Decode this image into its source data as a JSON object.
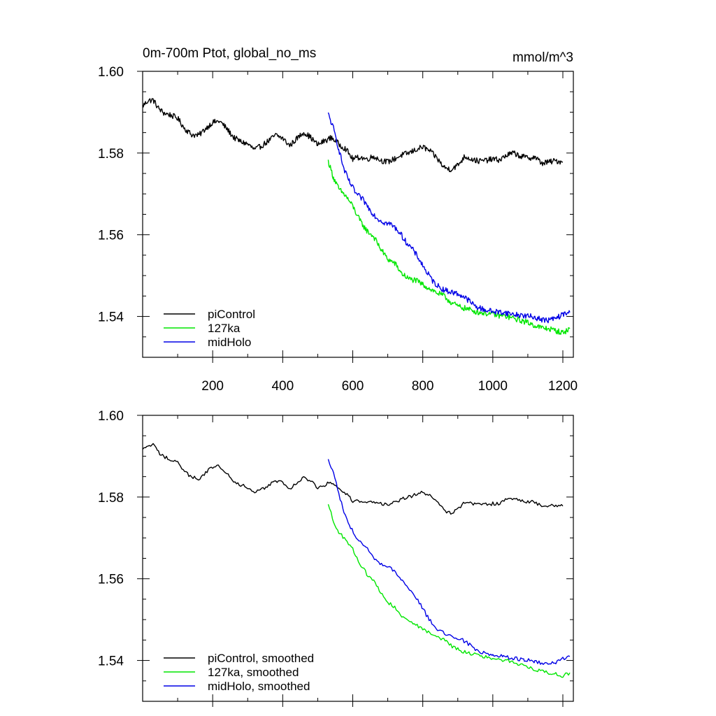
{
  "colors": {
    "background": "#ffffff",
    "axis": "#000000",
    "piControl": "#000000",
    "ka127": "#00e600",
    "midHolo": "#0000e6"
  },
  "chart_data": [
    {
      "id": "top",
      "type": "line",
      "title": "0m-700m Ptot, global_no_ms",
      "units": "mmol/m^3",
      "xlabel": "",
      "ylabel": "",
      "xlim": [
        0,
        1230
      ],
      "ylim": [
        1.53,
        1.6
      ],
      "xticks": [
        200,
        400,
        600,
        800,
        1000,
        1200
      ],
      "xtick_labels": [
        "200",
        "400",
        "600",
        "800",
        "1000",
        "1200"
      ],
      "show_x_tick_labels": true,
      "yticks": [
        1.54,
        1.56,
        1.58,
        1.6
      ],
      "ytick_labels": [
        "1.54",
        "1.56",
        "1.58",
        "1.60"
      ],
      "legend_position": "bottom-left",
      "series": [
        {
          "name": "piControl",
          "color": "#000000",
          "x": [
            0,
            15,
            30,
            45,
            60,
            80,
            100,
            120,
            140,
            160,
            180,
            200,
            220,
            240,
            260,
            280,
            300,
            320,
            340,
            360,
            380,
            400,
            420,
            440,
            460,
            480,
            500,
            520,
            540,
            560,
            580,
            600,
            620,
            640,
            660,
            680,
            700,
            720,
            740,
            760,
            780,
            800,
            820,
            840,
            860,
            880,
            900,
            920,
            940,
            960,
            980,
            1000,
            1020,
            1040,
            1060,
            1080,
            1100,
            1120,
            1140,
            1160,
            1180,
            1200
          ],
          "y": [
            1.5915,
            1.5928,
            1.593,
            1.591,
            1.5898,
            1.5893,
            1.5885,
            1.586,
            1.5845,
            1.5843,
            1.586,
            1.5875,
            1.5878,
            1.586,
            1.5838,
            1.5828,
            1.5822,
            1.5808,
            1.5818,
            1.583,
            1.5844,
            1.5836,
            1.5818,
            1.5835,
            1.5851,
            1.5838,
            1.582,
            1.583,
            1.5838,
            1.5822,
            1.581,
            1.5785,
            1.579,
            1.5785,
            1.5792,
            1.5782,
            1.5778,
            1.5786,
            1.5795,
            1.58,
            1.5808,
            1.5815,
            1.5805,
            1.5788,
            1.5765,
            1.576,
            1.577,
            1.5792,
            1.5785,
            1.578,
            1.5782,
            1.5785,
            1.5783,
            1.5795,
            1.58,
            1.5792,
            1.5788,
            1.579,
            1.5775,
            1.5778,
            1.5781,
            1.5778
          ]
        },
        {
          "name": "127ka",
          "color": "#00e600",
          "x": [
            530,
            545,
            560,
            580,
            600,
            620,
            640,
            660,
            680,
            700,
            720,
            740,
            760,
            780,
            800,
            820,
            840,
            860,
            880,
            900,
            920,
            940,
            960,
            980,
            1000,
            1020,
            1040,
            1060,
            1080,
            1100,
            1120,
            1140,
            1160,
            1180,
            1200,
            1220
          ],
          "y": [
            1.578,
            1.574,
            1.5712,
            1.5695,
            1.567,
            1.5635,
            1.561,
            1.5595,
            1.5565,
            1.554,
            1.553,
            1.5505,
            1.5492,
            1.5488,
            1.5478,
            1.5468,
            1.5458,
            1.545,
            1.5435,
            1.5425,
            1.542,
            1.5415,
            1.541,
            1.5408,
            1.5405,
            1.5402,
            1.54,
            1.5395,
            1.539,
            1.5385,
            1.5378,
            1.5372,
            1.537,
            1.5365,
            1.536,
            1.537
          ]
        },
        {
          "name": "midHolo",
          "color": "#0000e6",
          "x": [
            530,
            545,
            560,
            575,
            590,
            610,
            630,
            650,
            670,
            690,
            710,
            730,
            750,
            770,
            790,
            810,
            830,
            850,
            870,
            890,
            910,
            930,
            950,
            970,
            1000,
            1030,
            1060,
            1090,
            1120,
            1150,
            1180,
            1200,
            1220
          ],
          "y": [
            1.5895,
            1.586,
            1.581,
            1.576,
            1.573,
            1.57,
            1.5685,
            1.566,
            1.564,
            1.563,
            1.5625,
            1.561,
            1.5585,
            1.5565,
            1.554,
            1.551,
            1.5485,
            1.547,
            1.5462,
            1.5458,
            1.5452,
            1.544,
            1.5425,
            1.5418,
            1.5412,
            1.541,
            1.5405,
            1.5402,
            1.5398,
            1.539,
            1.5395,
            1.5405,
            1.541
          ]
        }
      ]
    },
    {
      "id": "bottom",
      "type": "line",
      "title": "",
      "units": "",
      "xlabel": "",
      "ylabel": "",
      "xlim": [
        0,
        1230
      ],
      "ylim": [
        1.53,
        1.6
      ],
      "xticks": [
        200,
        400,
        600,
        800,
        1000,
        1200
      ],
      "xtick_labels": [],
      "show_x_tick_labels": false,
      "yticks": [
        1.54,
        1.56,
        1.58,
        1.6
      ],
      "ytick_labels": [
        "1.54",
        "1.56",
        "1.58",
        "1.60"
      ],
      "legend_position": "bottom-left",
      "series": [
        {
          "name": "piControl, smoothed",
          "color": "#000000",
          "x": [
            0,
            15,
            30,
            45,
            60,
            80,
            100,
            120,
            140,
            160,
            180,
            200,
            220,
            240,
            260,
            280,
            300,
            320,
            340,
            360,
            380,
            400,
            420,
            440,
            460,
            480,
            500,
            520,
            540,
            560,
            580,
            600,
            620,
            640,
            660,
            680,
            700,
            720,
            740,
            760,
            780,
            800,
            820,
            840,
            860,
            880,
            900,
            920,
            940,
            960,
            980,
            1000,
            1020,
            1040,
            1060,
            1080,
            1100,
            1120,
            1140,
            1160,
            1180,
            1200
          ],
          "y": [
            1.5915,
            1.5925,
            1.5928,
            1.591,
            1.5898,
            1.5893,
            1.5885,
            1.5862,
            1.5848,
            1.5845,
            1.586,
            1.5873,
            1.5876,
            1.586,
            1.584,
            1.583,
            1.5822,
            1.581,
            1.5818,
            1.583,
            1.584,
            1.5835,
            1.582,
            1.5835,
            1.5848,
            1.5838,
            1.5822,
            1.583,
            1.5836,
            1.5822,
            1.581,
            1.579,
            1.579,
            1.5786,
            1.579,
            1.5784,
            1.578,
            1.5786,
            1.5794,
            1.58,
            1.5806,
            1.5812,
            1.5804,
            1.579,
            1.5768,
            1.5762,
            1.577,
            1.5788,
            1.5785,
            1.5781,
            1.5782,
            1.5784,
            1.5783,
            1.5794,
            1.5798,
            1.5792,
            1.5788,
            1.5788,
            1.5778,
            1.5778,
            1.578,
            1.5778
          ]
        },
        {
          "name": "127ka, smoothed",
          "color": "#00e600",
          "x": [
            530,
            545,
            560,
            580,
            600,
            620,
            640,
            660,
            680,
            700,
            720,
            740,
            760,
            780,
            800,
            820,
            840,
            860,
            880,
            900,
            920,
            940,
            960,
            980,
            1000,
            1020,
            1040,
            1060,
            1080,
            1100,
            1120,
            1140,
            1160,
            1180,
            1200,
            1220
          ],
          "y": [
            1.578,
            1.5742,
            1.5714,
            1.5696,
            1.5672,
            1.5638,
            1.5612,
            1.5595,
            1.5568,
            1.5542,
            1.553,
            1.5508,
            1.5494,
            1.5488,
            1.5478,
            1.5468,
            1.5458,
            1.545,
            1.5437,
            1.5427,
            1.5421,
            1.5416,
            1.5411,
            1.5408,
            1.5405,
            1.5402,
            1.54,
            1.5396,
            1.539,
            1.5385,
            1.5378,
            1.5373,
            1.537,
            1.5366,
            1.5362,
            1.537
          ]
        },
        {
          "name": "midHolo, smoothed",
          "color": "#0000e6",
          "x": [
            530,
            545,
            560,
            575,
            590,
            610,
            630,
            650,
            670,
            690,
            710,
            730,
            750,
            770,
            790,
            810,
            830,
            850,
            870,
            890,
            910,
            930,
            950,
            970,
            1000,
            1030,
            1060,
            1090,
            1120,
            1150,
            1180,
            1200,
            1220
          ],
          "y": [
            1.589,
            1.5858,
            1.581,
            1.5762,
            1.5732,
            1.5702,
            1.5686,
            1.5662,
            1.5641,
            1.5631,
            1.5625,
            1.561,
            1.5586,
            1.5566,
            1.5542,
            1.5512,
            1.5486,
            1.5471,
            1.5462,
            1.5458,
            1.5452,
            1.5441,
            1.5427,
            1.5419,
            1.5413,
            1.541,
            1.5405,
            1.5402,
            1.5398,
            1.5391,
            1.5395,
            1.5404,
            1.541
          ]
        }
      ]
    }
  ]
}
